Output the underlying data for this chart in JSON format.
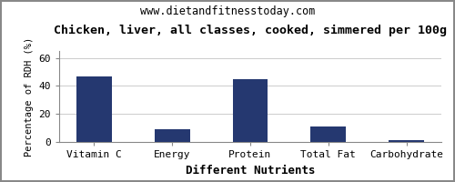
{
  "title": "Chicken, liver, all classes, cooked, simmered per 100g",
  "subtitle": "www.dietandfitnesstoday.com",
  "xlabel": "Different Nutrients",
  "ylabel": "Percentage of RDH (%)",
  "categories": [
    "Vitamin C",
    "Energy",
    "Protein",
    "Total Fat",
    "Carbohydrate"
  ],
  "values": [
    47,
    9,
    45,
    11,
    1.5
  ],
  "bar_color": "#253870",
  "ylim": [
    0,
    65
  ],
  "yticks": [
    0,
    20,
    40,
    60
  ],
  "background_color": "#ffffff",
  "plot_bg_color": "#ffffff",
  "title_fontsize": 9.5,
  "subtitle_fontsize": 8.5,
  "xlabel_fontsize": 9,
  "ylabel_fontsize": 7.5,
  "tick_fontsize": 8,
  "bar_width": 0.45
}
